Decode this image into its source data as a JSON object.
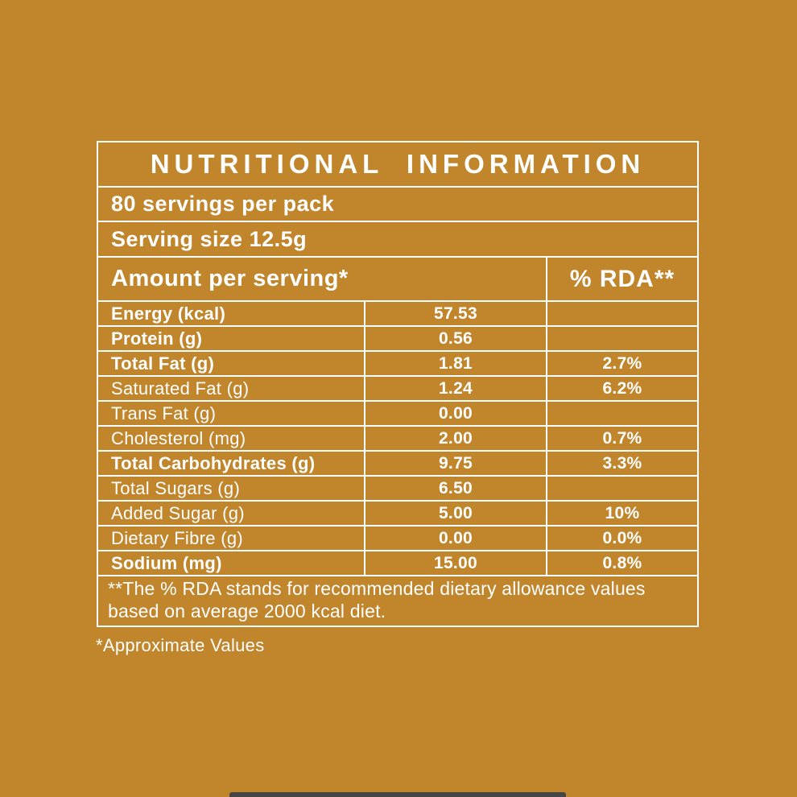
{
  "colors": {
    "background": "#C1852C",
    "text": "#FFFFFF",
    "home_indicator": "#454545"
  },
  "panel": {
    "title": "NUTRITIONAL INFORMATION",
    "servings_per_pack": "80 servings per pack",
    "serving_size": "Serving size 12.5g",
    "header": {
      "amount_label": "Amount per serving*",
      "rda_label": "% RDA**"
    },
    "rows": [
      {
        "label": "Energy (kcal)",
        "amount": "57.53",
        "rda": ""
      },
      {
        "label": "Protein (g)",
        "amount": "0.56",
        "rda": ""
      },
      {
        "label": "Total Fat (g)",
        "amount": "1.81",
        "rda": "2.7%"
      },
      {
        "label": "Saturated Fat (g)",
        "amount": "1.24",
        "rda": "6.2%"
      },
      {
        "label": "Trans Fat (g)",
        "amount": "0.00",
        "rda": ""
      },
      {
        "label": "Cholesterol (mg)",
        "amount": "2.00",
        "rda": "0.7%"
      },
      {
        "label": "Total Carbohydrates (g)",
        "amount": "9.75",
        "rda": "3.3%"
      },
      {
        "label": "Total Sugars (g)",
        "amount": "6.50",
        "rda": ""
      },
      {
        "label": "Added  Sugar (g)",
        "amount": "5.00",
        "rda": "10%"
      },
      {
        "label": "Dietary Fibre (g)",
        "amount": "0.00",
        "rda": "0.0%"
      },
      {
        "label": "Sodium (mg)",
        "amount": "15.00",
        "rda": "0.8%"
      }
    ],
    "footnote": "**The % RDA stands for recommended dietary allowance values based on average 2000 kcal diet.",
    "approximate_note": "*Approximate Values"
  }
}
